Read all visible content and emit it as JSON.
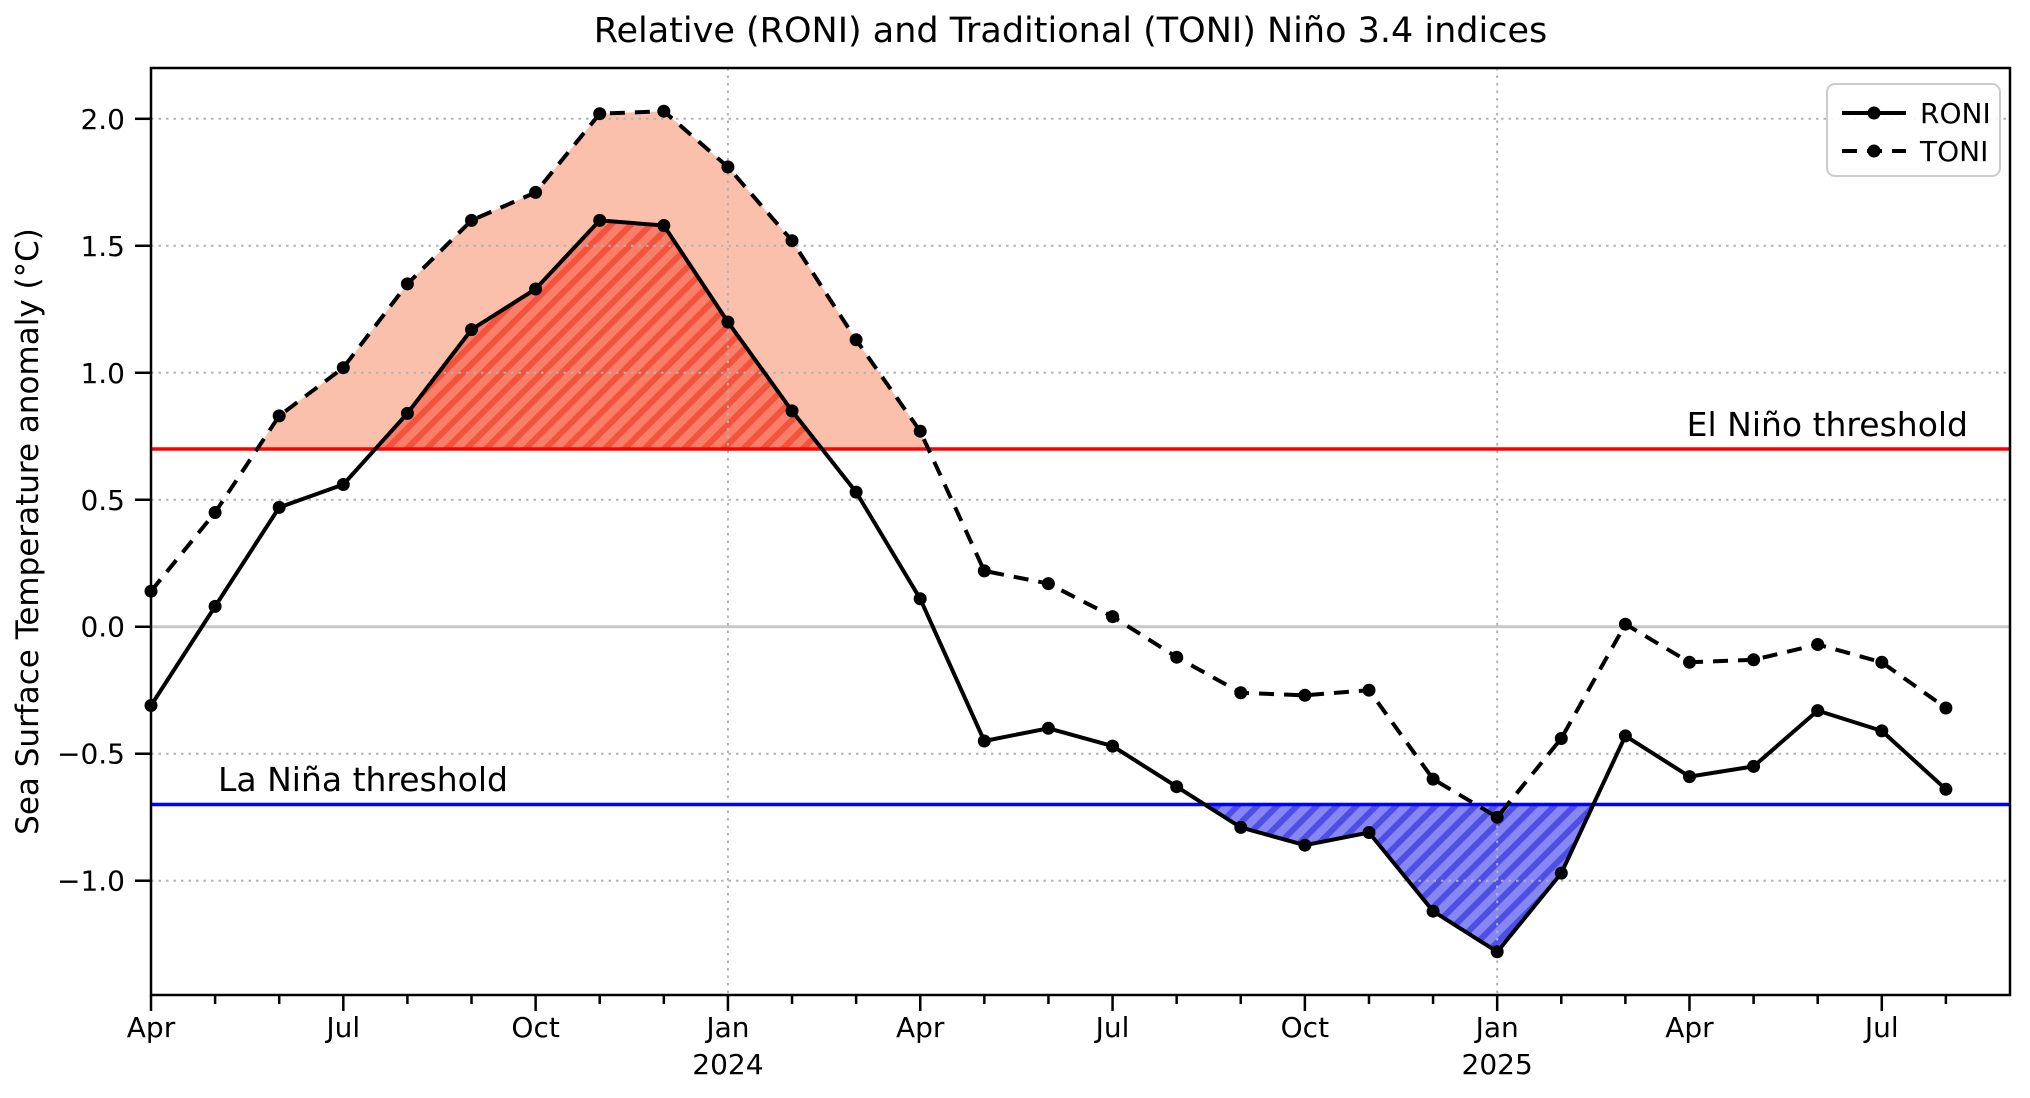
{
  "title": "Relative (RONI) and Traditional (TONI) Niño 3.4 indices",
  "ylabel": "Sea Surface Temperature anomaly (°C)",
  "legend": {
    "roni_label": "RONI",
    "toni_label": "TONI"
  },
  "annotations": {
    "el_nino_label": "El Niño threshold",
    "la_nina_label": "La Niña threshold"
  },
  "colors": {
    "series_line": "#000000",
    "el_nino_line": "#ff0000",
    "la_nina_line": "#0000ff",
    "toni_fill": "#fbc0ab",
    "roni_fill_base": "#f97f69",
    "roni_fill_stripe": "#f3523c",
    "la_nina_fill_base": "#8787f4",
    "la_nina_fill_stripe": "#4e4ee6",
    "grid": "#b3b3b3",
    "zero_line": "#c8c8c8",
    "legend_border": "#cccccc"
  },
  "chart_data": {
    "type": "line",
    "title": "Relative (RONI) and Traditional (TONI) Niño 3.4 indices",
    "xlabel": "",
    "ylabel": "Sea Surface Temperature anomaly (°C)",
    "ylim": [
      -1.45,
      2.2
    ],
    "grid": true,
    "legend_position": "upper right",
    "x_months": [
      "Apr 2023",
      "May 2023",
      "Jun 2023",
      "Jul 2023",
      "Aug 2023",
      "Sep 2023",
      "Oct 2023",
      "Nov 2023",
      "Dec 2023",
      "Jan 2024",
      "Feb 2024",
      "Mar 2024",
      "Apr 2024",
      "May 2024",
      "Jun 2024",
      "Jul 2024",
      "Aug 2024",
      "Sep 2024",
      "Oct 2024",
      "Nov 2024",
      "Dec 2024",
      "Jan 2025",
      "Feb 2025",
      "Mar 2025",
      "Apr 2025",
      "May 2025",
      "Jun 2025",
      "Jul 2025",
      "Aug 2025"
    ],
    "series": [
      {
        "name": "RONI",
        "style": "solid",
        "marker": "circle",
        "values": [
          -0.31,
          0.08,
          0.47,
          0.56,
          0.84,
          1.17,
          1.33,
          1.6,
          1.58,
          1.2,
          0.85,
          0.53,
          0.11,
          -0.45,
          -0.4,
          -0.47,
          -0.63,
          -0.79,
          -0.86,
          -0.81,
          -1.12,
          -1.28,
          -0.97,
          -0.43,
          -0.59,
          -0.55,
          -0.33,
          -0.41,
          -0.64
        ]
      },
      {
        "name": "TONI",
        "style": "dashed",
        "marker": "circle",
        "values": [
          0.14,
          0.45,
          0.83,
          1.02,
          1.35,
          1.6,
          1.71,
          2.02,
          2.03,
          1.81,
          1.52,
          1.13,
          0.77,
          0.22,
          0.17,
          0.04,
          -0.12,
          -0.26,
          -0.27,
          -0.25,
          -0.6,
          -0.75,
          -0.44,
          0.01,
          -0.14,
          -0.13,
          -0.07,
          -0.14,
          -0.32
        ]
      }
    ],
    "thresholds": {
      "el_nino": 0.7,
      "la_nina": -0.7
    },
    "yticks": [
      {
        "v": 2.0,
        "label": "2.0"
      },
      {
        "v": 1.5,
        "label": "1.5"
      },
      {
        "v": 1.0,
        "label": "1.0"
      },
      {
        "v": 0.5,
        "label": "0.5"
      },
      {
        "v": 0.0,
        "label": "0.0"
      },
      {
        "v": -0.5,
        "label": "−0.5"
      },
      {
        "v": -1.0,
        "label": "−1.0"
      }
    ],
    "xticks": [
      {
        "i": 0,
        "label": "Apr"
      },
      {
        "i": 3,
        "label": "Jul"
      },
      {
        "i": 6,
        "label": "Oct"
      },
      {
        "i": 9,
        "label": "Jan",
        "year": "2024"
      },
      {
        "i": 12,
        "label": "Apr"
      },
      {
        "i": 15,
        "label": "Jul"
      },
      {
        "i": 18,
        "label": "Oct"
      },
      {
        "i": 21,
        "label": "Jan",
        "year": "2025"
      },
      {
        "i": 24,
        "label": "Apr"
      },
      {
        "i": 27,
        "label": "Jul"
      }
    ],
    "vertical_gridlines": [
      9,
      21
    ]
  }
}
